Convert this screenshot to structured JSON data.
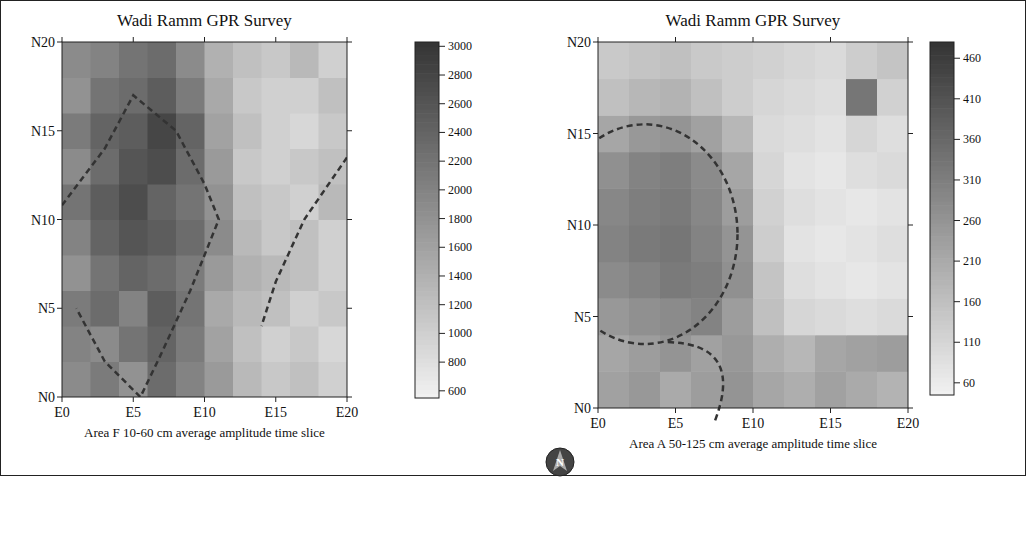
{
  "north_arrow": {
    "label": "N"
  },
  "chart_data": [
    {
      "type": "heatmap",
      "title": "Wadi Ramm GPR Survey",
      "x_label": "Area F 10-60 cm average amplitude time slice",
      "xlim": [
        0,
        20
      ],
      "ylim": [
        0,
        20
      ],
      "xticks": [
        {
          "value": 0,
          "label": "E0"
        },
        {
          "value": 5,
          "label": "E5"
        },
        {
          "value": 10,
          "label": "E10"
        },
        {
          "value": 15,
          "label": "E15"
        },
        {
          "value": 20,
          "label": "E20"
        }
      ],
      "yticks": [
        {
          "value": 0,
          "label": "N0"
        },
        {
          "value": 5,
          "label": "N5"
        },
        {
          "value": 10,
          "label": "N10"
        },
        {
          "value": 15,
          "label": "N15"
        },
        {
          "value": 20,
          "label": "N20"
        }
      ],
      "cells": [
        [
          1900,
          2100,
          1800,
          2300,
          2000,
          1700,
          1300,
          1100,
          1200,
          1000
        ],
        [
          2000,
          1900,
          2200,
          2400,
          2100,
          1600,
          1200,
          1000,
          1100,
          900
        ],
        [
          2100,
          2300,
          2000,
          2500,
          2200,
          1500,
          1300,
          1200,
          1000,
          1100
        ],
        [
          1800,
          2200,
          2400,
          2300,
          2100,
          1700,
          1400,
          1300,
          1200,
          1000
        ],
        [
          2000,
          2400,
          2600,
          2500,
          2300,
          1900,
          1300,
          1100,
          1200,
          1000
        ],
        [
          2200,
          2500,
          2700,
          2400,
          2200,
          1800,
          1200,
          1100,
          1000,
          1300
        ],
        [
          1900,
          2300,
          2600,
          2700,
          2300,
          1700,
          1100,
          1000,
          1100,
          1200
        ],
        [
          2100,
          2400,
          2500,
          2800,
          2400,
          1600,
          1200,
          1000,
          900,
          1100
        ],
        [
          1800,
          2200,
          2300,
          2500,
          2100,
          1500,
          1100,
          1000,
          1000,
          1200
        ],
        [
          1900,
          2000,
          2200,
          2300,
          1900,
          1400,
          1200,
          1100,
          1300,
          1000
        ]
      ],
      "color_range": [
        550,
        3030
      ],
      "color_ticks": [
        600,
        800,
        1000,
        1200,
        1400,
        1600,
        1800,
        2000,
        2200,
        2400,
        2600,
        2800,
        3000
      ]
    },
    {
      "type": "heatmap",
      "title": "Wadi Ramm GPR Survey",
      "x_label": "Area A 50-125 cm average amplitude time slice",
      "xlim": [
        0,
        20
      ],
      "ylim": [
        0,
        20
      ],
      "xticks": [
        {
          "value": 0,
          "label": "E0"
        },
        {
          "value": 5,
          "label": "E5"
        },
        {
          "value": 10,
          "label": "E10"
        },
        {
          "value": 15,
          "label": "E15"
        },
        {
          "value": 20,
          "label": "E20"
        }
      ],
      "yticks": [
        {
          "value": 0,
          "label": "N0"
        },
        {
          "value": 5,
          "label": "N5"
        },
        {
          "value": 10,
          "label": "N10"
        },
        {
          "value": 15,
          "label": "N15"
        },
        {
          "value": 20,
          "label": "N20"
        }
      ],
      "cells": [
        [
          230,
          250,
          210,
          240,
          260,
          220,
          200,
          230,
          210,
          190
        ],
        [
          220,
          240,
          260,
          230,
          250,
          200,
          180,
          220,
          230,
          240
        ],
        [
          250,
          270,
          280,
          300,
          240,
          160,
          110,
          100,
          90,
          100
        ],
        [
          280,
          300,
          320,
          310,
          270,
          150,
          90,
          80,
          70,
          80
        ],
        [
          300,
          320,
          330,
          300,
          260,
          130,
          80,
          70,
          80,
          90
        ],
        [
          290,
          310,
          320,
          290,
          240,
          120,
          90,
          80,
          70,
          80
        ],
        [
          270,
          300,
          310,
          280,
          220,
          110,
          80,
          70,
          90,
          100
        ],
        [
          220,
          250,
          260,
          230,
          180,
          100,
          90,
          80,
          110,
          90
        ],
        [
          160,
          180,
          190,
          160,
          130,
          110,
          100,
          90,
          330,
          120
        ],
        [
          140,
          150,
          160,
          140,
          130,
          120,
          110,
          100,
          130,
          150
        ]
      ],
      "color_range": [
        45,
        480
      ],
      "color_ticks": [
        60,
        110,
        160,
        210,
        260,
        310,
        360,
        410,
        460
      ]
    }
  ]
}
